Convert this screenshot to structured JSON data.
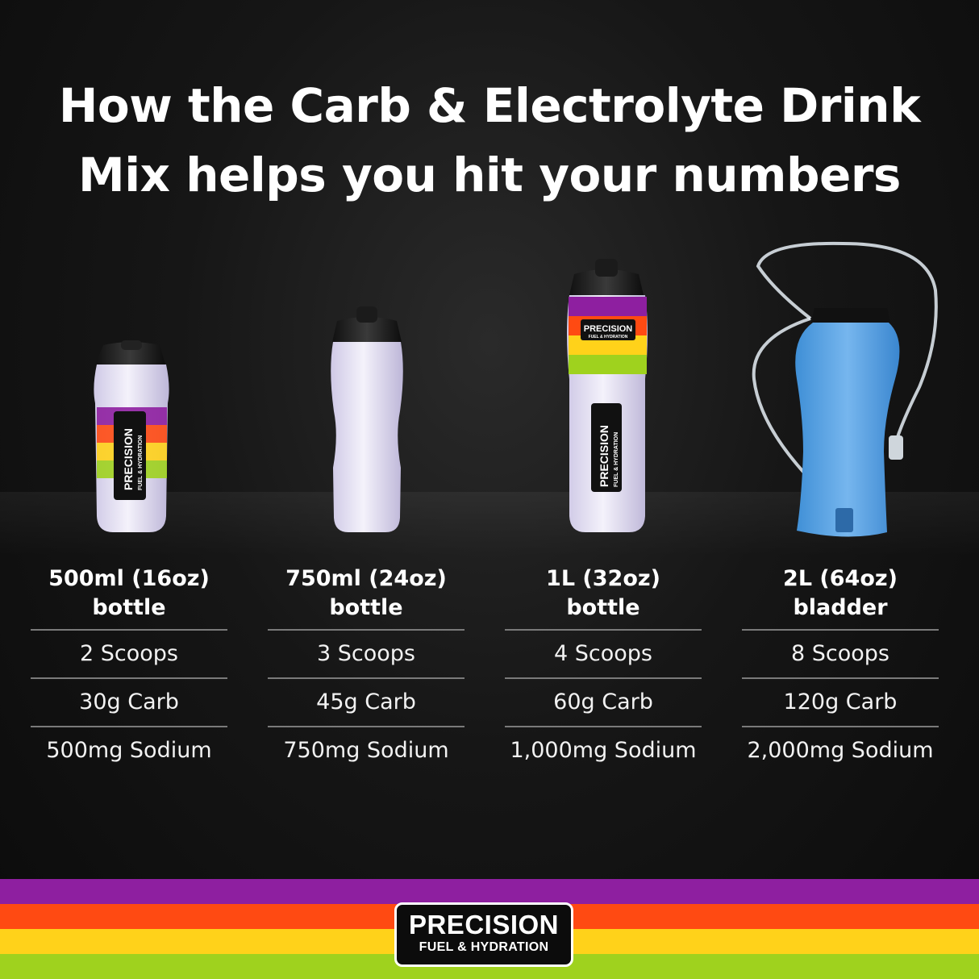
{
  "title_lines": [
    "How the Carb & Electrolyte Drink",
    "Mix helps you hit your numbers"
  ],
  "columns": [
    {
      "head_line1": "500ml (16oz)",
      "head_line2": "bottle",
      "scoops": "2 Scoops",
      "carb": "30g Carb",
      "sodium": "500mg Sodium"
    },
    {
      "head_line1": "750ml (24oz)",
      "head_line2": "bottle",
      "scoops": "3 Scoops",
      "carb": "45g Carb",
      "sodium": "750mg Sodium"
    },
    {
      "head_line1": "1L (32oz)",
      "head_line2": "bottle",
      "scoops": "4 Scoops",
      "carb": "60g Carb",
      "sodium": "1,000mg Sodium"
    },
    {
      "head_line1": "2L (64oz)",
      "head_line2": "bladder",
      "scoops": "8 Scoops",
      "carb": "120g Carb",
      "sodium": "2,000mg Sodium"
    }
  ],
  "bottle_label": {
    "main": "PRECISION",
    "sub": "FUEL & HYDRATION"
  },
  "logo": {
    "main": "PRECISION",
    "sub": "FUEL & HYDRATION"
  },
  "colors": {
    "stripe_purple": "#8e1fa0",
    "stripe_orange": "#ff4a12",
    "stripe_yellow": "#ffd21a",
    "stripe_green": "#9fd21e",
    "bladder_blue": "#5aa4e6"
  },
  "icons": [
    "500ml-bottle-image",
    "750ml-bottle-image",
    "1l-bottle-image",
    "2l-hydration-bladder-image",
    "precision-logo"
  ]
}
